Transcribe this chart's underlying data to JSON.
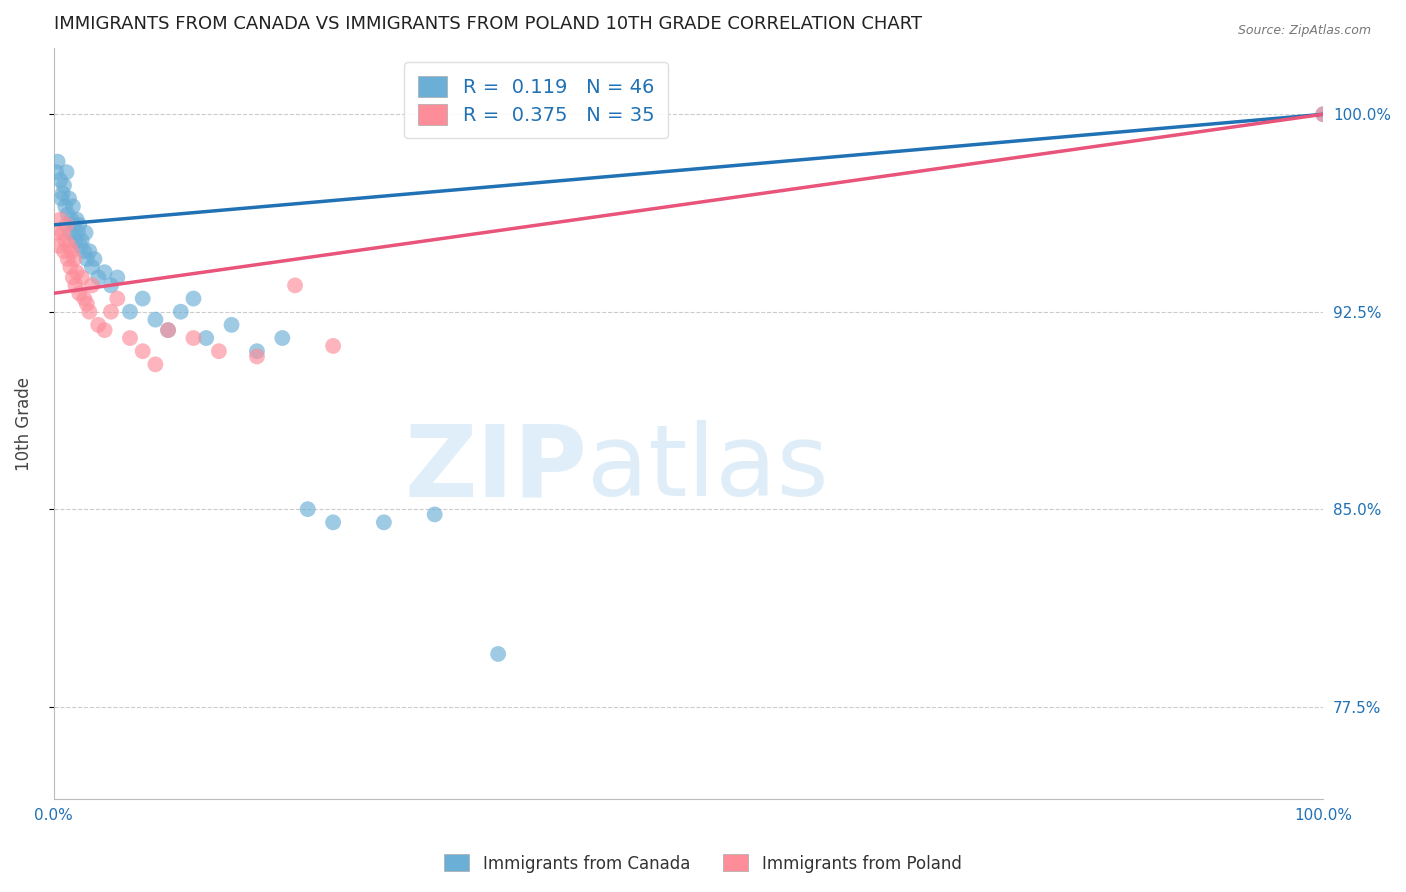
{
  "title": "IMMIGRANTS FROM CANADA VS IMMIGRANTS FROM POLAND 10TH GRADE CORRELATION CHART",
  "source": "Source: ZipAtlas.com",
  "ylabel": "10th Grade",
  "y_ticks": [
    77.5,
    85.0,
    92.5,
    100.0
  ],
  "y_tick_labels": [
    "77.5%",
    "85.0%",
    "92.5%",
    "100.0%"
  ],
  "x_ticks": [
    0.0,
    20.0,
    40.0,
    60.0,
    80.0,
    100.0
  ],
  "xlim": [
    0.0,
    100.0
  ],
  "ylim": [
    74.0,
    102.5
  ],
  "canada_R": 0.119,
  "canada_N": 46,
  "poland_R": 0.375,
  "poland_N": 35,
  "canada_color": "#6baed6",
  "poland_color": "#fc8d99",
  "canada_line_color": "#2171b5",
  "poland_line_color": "#e8547a",
  "legend_label_canada": "Immigrants from Canada",
  "legend_label_poland": "Immigrants from Poland",
  "watermark_zip": "ZIP",
  "watermark_atlas": "atlas",
  "background_color": "#ffffff",
  "grid_color": "#cccccc",
  "title_color": "#222222",
  "axis_tick_color": "#2171b5",
  "legend_text_color": "#2171b5",
  "canada_x": [
    0.2,
    0.3,
    0.5,
    0.6,
    0.7,
    0.8,
    0.9,
    1.0,
    1.1,
    1.2,
    1.3,
    1.4,
    1.5,
    1.6,
    1.7,
    1.8,
    1.9,
    2.0,
    2.1,
    2.2,
    2.4,
    2.5,
    2.6,
    2.8,
    3.0,
    3.2,
    3.5,
    4.0,
    4.5,
    5.0,
    6.0,
    7.0,
    8.0,
    9.0,
    10.0,
    11.0,
    12.0,
    14.0,
    16.0,
    18.0,
    20.0,
    22.0,
    26.0,
    30.0,
    35.0,
    100.0
  ],
  "canada_y": [
    97.8,
    98.2,
    97.5,
    96.8,
    97.0,
    97.3,
    96.5,
    97.8,
    96.2,
    96.8,
    95.5,
    96.0,
    96.5,
    95.8,
    95.2,
    96.0,
    95.5,
    95.8,
    95.0,
    95.2,
    94.8,
    95.5,
    94.5,
    94.8,
    94.2,
    94.5,
    93.8,
    94.0,
    93.5,
    93.8,
    92.5,
    93.0,
    92.2,
    91.8,
    92.5,
    93.0,
    91.5,
    92.0,
    91.0,
    91.5,
    85.0,
    84.5,
    84.5,
    84.8,
    79.5,
    100.0
  ],
  "poland_x": [
    0.2,
    0.4,
    0.5,
    0.7,
    0.8,
    0.9,
    1.0,
    1.1,
    1.2,
    1.3,
    1.4,
    1.5,
    1.6,
    1.7,
    1.8,
    2.0,
    2.2,
    2.4,
    2.6,
    2.8,
    3.0,
    3.5,
    4.0,
    4.5,
    5.0,
    6.0,
    7.0,
    8.0,
    9.0,
    11.0,
    13.0,
    16.0,
    19.0,
    22.0,
    100.0
  ],
  "poland_y": [
    95.5,
    95.0,
    96.0,
    95.5,
    94.8,
    95.2,
    95.8,
    94.5,
    95.0,
    94.2,
    94.8,
    93.8,
    94.5,
    93.5,
    94.0,
    93.2,
    93.8,
    93.0,
    92.8,
    92.5,
    93.5,
    92.0,
    91.8,
    92.5,
    93.0,
    91.5,
    91.0,
    90.5,
    91.8,
    91.5,
    91.0,
    90.8,
    93.5,
    91.2,
    100.0
  ]
}
